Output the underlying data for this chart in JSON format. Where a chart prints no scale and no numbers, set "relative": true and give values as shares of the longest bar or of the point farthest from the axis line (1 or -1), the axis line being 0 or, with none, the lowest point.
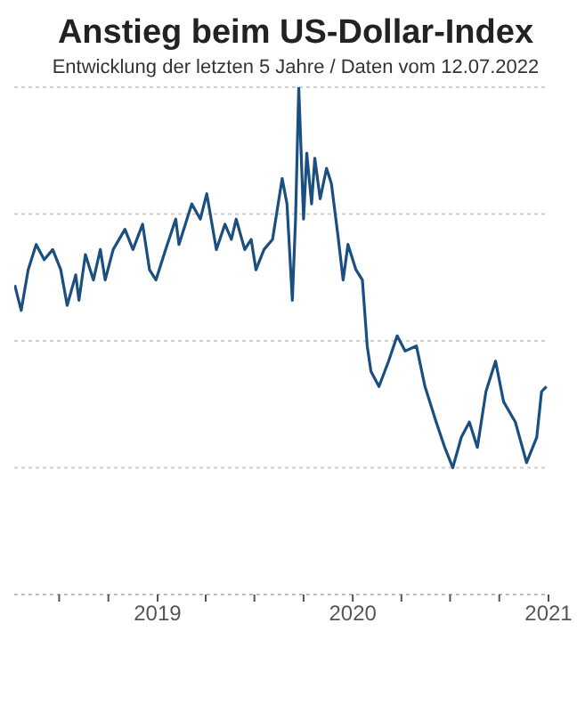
{
  "chart_data": {
    "type": "line",
    "title": "Anstieg beim US-Dollar-Index",
    "subtitle": "Entwicklung der letzten 5 Jahre / Daten vom 12.07.2022",
    "relative": true,
    "tick_labels": "x",
    "grid": "y",
    "marker": "none",
    "line_style": "solid",
    "legend": false,
    "xlim": [
      "2018-04-08",
      "2021-01-01"
    ],
    "xticks": [
      {
        "value": "2018-07",
        "label": null
      },
      {
        "value": "2018-10",
        "label": null
      },
      "2019",
      {
        "value": "2019-04",
        "label": null
      },
      {
        "value": "2019-07",
        "label": null
      },
      {
        "value": "2019-10",
        "label": null
      },
      "2020",
      {
        "value": "2020-04",
        "label": null
      },
      {
        "value": "2020-07",
        "label": null
      },
      {
        "value": "2020-10",
        "label": null
      },
      "2021"
    ],
    "x": [
      "2018-04-09",
      "2018-04-21",
      "2018-05-04",
      "2018-05-19",
      "2018-06-03",
      "2018-06-19",
      "2018-07-04",
      "2018-07-16",
      "2018-08-01",
      "2018-08-07",
      "2018-08-19",
      "2018-09-03",
      "2018-09-16",
      "2018-09-25",
      "2018-10-10",
      "2018-11-01",
      "2018-11-16",
      "2018-12-04",
      "2018-12-17",
      "2018-12-29",
      "2019-01-16",
      "2019-02-04",
      "2019-02-10",
      "2019-03-06",
      "2019-03-22",
      "2019-04-03",
      "2019-04-21",
      "2019-05-07",
      "2019-05-19",
      "2019-05-28",
      "2019-06-13",
      "2019-06-25",
      "2019-07-04",
      "2019-07-19",
      "2019-08-04",
      "2019-08-10",
      "2019-08-22",
      "2019-08-31",
      "2019-09-10",
      "2019-09-16",
      "2019-09-22",
      "2019-10-01",
      "2019-10-07",
      "2019-10-16",
      "2019-10-22",
      "2019-11-01",
      "2019-11-13",
      "2019-11-22",
      "2019-12-04",
      "2019-12-14",
      "2019-12-23",
      "2020-01-07",
      "2020-01-19",
      "2020-01-28",
      "2020-02-04",
      "2020-02-19",
      "2020-03-08",
      "2020-03-24",
      "2020-04-08",
      "2020-04-29",
      "2020-05-15",
      "2020-06-05",
      "2020-06-21",
      "2020-07-06",
      "2020-07-22",
      "2020-08-06",
      "2020-08-21",
      "2020-09-06",
      "2020-09-24",
      "2020-10-09",
      "2020-10-31",
      "2020-11-21",
      "2020-12-10",
      "2020-12-19",
      "2020-12-28"
    ],
    "series": [
      {
        "color": "#1b4f80",
        "values": [
          0.61,
          0.56,
          0.64,
          0.69,
          0.66,
          0.68,
          0.64,
          0.57,
          0.63,
          0.58,
          0.67,
          0.62,
          0.68,
          0.62,
          0.68,
          0.72,
          0.68,
          0.73,
          0.64,
          0.62,
          0.68,
          0.74,
          0.69,
          0.77,
          0.74,
          0.79,
          0.68,
          0.73,
          0.7,
          0.74,
          0.68,
          0.7,
          0.64,
          0.68,
          0.7,
          0.74,
          0.82,
          0.77,
          0.58,
          0.74,
          1.0,
          0.74,
          0.87,
          0.77,
          0.86,
          0.78,
          0.84,
          0.81,
          0.71,
          0.62,
          0.69,
          0.64,
          0.62,
          0.49,
          0.44,
          0.41,
          0.46,
          0.51,
          0.48,
          0.49,
          0.41,
          0.34,
          0.29,
          0.25,
          0.31,
          0.34,
          0.29,
          0.4,
          0.46,
          0.38,
          0.34,
          0.26,
          0.31,
          0.4,
          0.41
        ]
      }
    ]
  }
}
